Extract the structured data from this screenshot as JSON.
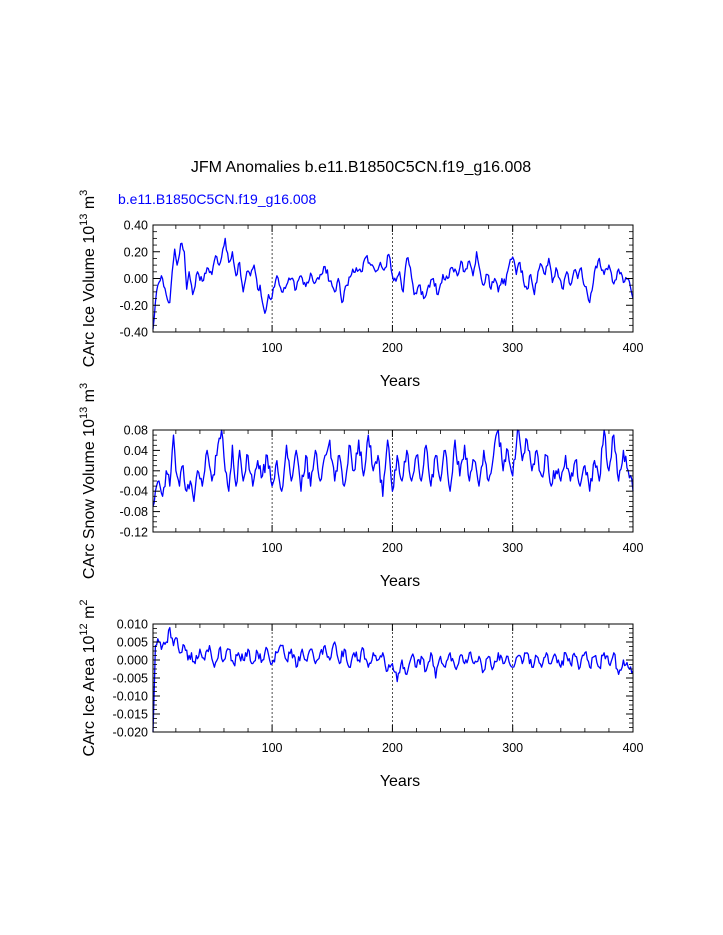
{
  "figure": {
    "title": "JFM Anomalies b.e11.B1850C5CN.f19_g16.008",
    "subtitle": "b.e11.B1850C5CN.f19_g16.008",
    "line_color": "#0000ff",
    "ref_line_color": "#000000"
  },
  "chart_data": [
    {
      "type": "line",
      "name": "ice-volume",
      "ylabel_main": "CArc Ice Volume 10",
      "ylabel_exp": "13",
      "ylabel_unit": " m",
      "ylabel_unit_exp": "3",
      "xlabel": "Years",
      "xlim": [
        1,
        400
      ],
      "ylim": [
        -0.4,
        0.4
      ],
      "yticks": [
        -0.4,
        -0.2,
        0.0,
        0.2,
        0.4
      ],
      "ytick_labels": [
        "-0.40",
        "-0.20",
        "0.00",
        "0.20",
        "0.40"
      ],
      "xticks": [
        100,
        200,
        300,
        400
      ],
      "xtick_labels": [
        "100",
        "200",
        "300",
        "400"
      ],
      "ref_lines_x": [
        100,
        200,
        300
      ],
      "keypoints": [
        [
          1,
          -0.38
        ],
        [
          3,
          -0.18
        ],
        [
          5,
          -0.05
        ],
        [
          8,
          0.02
        ],
        [
          12,
          -0.12
        ],
        [
          15,
          -0.18
        ],
        [
          17,
          0.05
        ],
        [
          19,
          0.22
        ],
        [
          21,
          0.1
        ],
        [
          24,
          0.26
        ],
        [
          27,
          0.2
        ],
        [
          29,
          -0.08
        ],
        [
          31,
          0.05
        ],
        [
          34,
          -0.12
        ],
        [
          38,
          0.05
        ],
        [
          42,
          -0.02
        ],
        [
          46,
          0.08
        ],
        [
          50,
          0.03
        ],
        [
          53,
          0.17
        ],
        [
          56,
          0.1
        ],
        [
          59,
          0.22
        ],
        [
          61,
          0.3
        ],
        [
          64,
          0.12
        ],
        [
          67,
          0.2
        ],
        [
          70,
          0.02
        ],
        [
          73,
          0.12
        ],
        [
          76,
          -0.1
        ],
        [
          79,
          0.05
        ],
        [
          82,
          0.02
        ],
        [
          85,
          0.1
        ],
        [
          88,
          -0.08
        ],
        [
          90,
          -0.05
        ],
        [
          92,
          -0.18
        ],
        [
          94,
          -0.26
        ],
        [
          97,
          -0.12
        ],
        [
          100,
          -0.14
        ],
        [
          104,
          0.02
        ],
        [
          108,
          -0.1
        ],
        [
          112,
          -0.05
        ],
        [
          116,
          0.0
        ],
        [
          120,
          -0.08
        ],
        [
          124,
          0.02
        ],
        [
          128,
          -0.06
        ],
        [
          132,
          0.04
        ],
        [
          136,
          -0.03
        ],
        [
          140,
          0.03
        ],
        [
          144,
          0.09
        ],
        [
          148,
          -0.02
        ],
        [
          152,
          -0.1
        ],
        [
          155,
          0.0
        ],
        [
          158,
          -0.18
        ],
        [
          162,
          -0.05
        ],
        [
          166,
          0.03
        ],
        [
          170,
          0.08
        ],
        [
          174,
          0.05
        ],
        [
          178,
          0.16
        ],
        [
          182,
          0.1
        ],
        [
          186,
          0.05
        ],
        [
          190,
          0.12
        ],
        [
          194,
          0.08
        ],
        [
          197,
          0.18
        ],
        [
          200,
          0.02
        ],
        [
          203,
          -0.02
        ],
        [
          206,
          0.05
        ],
        [
          209,
          -0.1
        ],
        [
          212,
          0.15
        ],
        [
          215,
          0.08
        ],
        [
          218,
          -0.12
        ],
        [
          222,
          -0.05
        ],
        [
          226,
          -0.15
        ],
        [
          230,
          -0.05
        ],
        [
          234,
          0.0
        ],
        [
          238,
          -0.12
        ],
        [
          242,
          0.03
        ],
        [
          246,
          0.0
        ],
        [
          250,
          0.08
        ],
        [
          254,
          0.02
        ],
        [
          257,
          0.13
        ],
        [
          260,
          0.05
        ],
        [
          264,
          0.13
        ],
        [
          267,
          0.02
        ],
        [
          270,
          0.2
        ],
        [
          273,
          0.05
        ],
        [
          276,
          -0.05
        ],
        [
          279,
          0.03
        ],
        [
          282,
          -0.08
        ],
        [
          285,
          0.0
        ],
        [
          288,
          -0.1
        ],
        [
          291,
          0.0
        ],
        [
          294,
          -0.05
        ],
        [
          297,
          0.1
        ],
        [
          300,
          0.16
        ],
        [
          303,
          0.03
        ],
        [
          306,
          0.12
        ],
        [
          309,
          -0.02
        ],
        [
          312,
          -0.08
        ],
        [
          315,
          0.03
        ],
        [
          318,
          -0.12
        ],
        [
          321,
          0.05
        ],
        [
          324,
          0.1
        ],
        [
          327,
          0.03
        ],
        [
          330,
          0.15
        ],
        [
          333,
          -0.03
        ],
        [
          336,
          0.08
        ],
        [
          339,
          0.0
        ],
        [
          342,
          -0.08
        ],
        [
          345,
          0.05
        ],
        [
          348,
          -0.05
        ],
        [
          351,
          0.06
        ],
        [
          354,
          0.0
        ],
        [
          357,
          0.08
        ],
        [
          360,
          -0.06
        ],
        [
          364,
          -0.18
        ],
        [
          368,
          0.05
        ],
        [
          372,
          0.15
        ],
        [
          376,
          0.03
        ],
        [
          380,
          0.1
        ],
        [
          384,
          -0.04
        ],
        [
          388,
          0.07
        ],
        [
          392,
          -0.03
        ],
        [
          396,
          0.0
        ],
        [
          400,
          -0.15
        ]
      ]
    },
    {
      "type": "line",
      "name": "snow-volume",
      "ylabel_main": "CArc Snow Volume 10",
      "ylabel_exp": "13",
      "ylabel_unit": " m",
      "ylabel_unit_exp": "3",
      "xlabel": "Years",
      "xlim": [
        1,
        400
      ],
      "ylim": [
        -0.12,
        0.08
      ],
      "yticks": [
        -0.12,
        -0.08,
        -0.04,
        0.0,
        0.04,
        0.08
      ],
      "ytick_labels": [
        "-0.12",
        "-0.08",
        "-0.04",
        "0.00",
        "0.04",
        "0.08"
      ],
      "xticks": [
        100,
        200,
        300,
        400
      ],
      "xtick_labels": [
        "100",
        "200",
        "300",
        "400"
      ],
      "ref_lines_x": [
        100,
        200,
        300
      ],
      "keypoints": [
        [
          1,
          -0.07
        ],
        [
          3,
          -0.04
        ],
        [
          6,
          -0.02
        ],
        [
          9,
          -0.05
        ],
        [
          12,
          0.0
        ],
        [
          15,
          -0.03
        ],
        [
          18,
          0.07
        ],
        [
          20,
          0.0
        ],
        [
          23,
          -0.03
        ],
        [
          26,
          0.01
        ],
        [
          29,
          -0.04
        ],
        [
          32,
          -0.02
        ],
        [
          35,
          -0.06
        ],
        [
          38,
          0.0
        ],
        [
          42,
          -0.03
        ],
        [
          46,
          0.04
        ],
        [
          50,
          -0.02
        ],
        [
          54,
          0.03
        ],
        [
          58,
          0.09
        ],
        [
          61,
          0.0
        ],
        [
          64,
          -0.04
        ],
        [
          67,
          0.05
        ],
        [
          70,
          -0.03
        ],
        [
          73,
          0.04
        ],
        [
          76,
          -0.02
        ],
        [
          80,
          0.03
        ],
        [
          84,
          -0.03
        ],
        [
          88,
          0.02
        ],
        [
          92,
          -0.01
        ],
        [
          96,
          0.03
        ],
        [
          100,
          -0.03
        ],
        [
          104,
          0.02
        ],
        [
          108,
          -0.04
        ],
        [
          112,
          0.05
        ],
        [
          116,
          -0.02
        ],
        [
          120,
          0.04
        ],
        [
          124,
          -0.04
        ],
        [
          128,
          0.03
        ],
        [
          132,
          -0.03
        ],
        [
          136,
          0.04
        ],
        [
          140,
          -0.02
        ],
        [
          144,
          0.03
        ],
        [
          148,
          0.06
        ],
        [
          152,
          -0.02
        ],
        [
          156,
          0.03
        ],
        [
          160,
          -0.03
        ],
        [
          164,
          0.05
        ],
        [
          168,
          0.0
        ],
        [
          172,
          0.06
        ],
        [
          176,
          -0.01
        ],
        [
          180,
          0.07
        ],
        [
          184,
          0.0
        ],
        [
          188,
          0.03
        ],
        [
          192,
          -0.05
        ],
        [
          196,
          0.06
        ],
        [
          200,
          -0.04
        ],
        [
          204,
          0.03
        ],
        [
          208,
          -0.02
        ],
        [
          212,
          0.04
        ],
        [
          216,
          -0.02
        ],
        [
          220,
          0.03
        ],
        [
          224,
          -0.02
        ],
        [
          228,
          0.05
        ],
        [
          232,
          -0.03
        ],
        [
          236,
          0.03
        ],
        [
          240,
          -0.02
        ],
        [
          244,
          0.04
        ],
        [
          248,
          -0.04
        ],
        [
          252,
          0.06
        ],
        [
          256,
          -0.01
        ],
        [
          260,
          0.05
        ],
        [
          264,
          -0.02
        ],
        [
          268,
          0.02
        ],
        [
          272,
          -0.03
        ],
        [
          276,
          0.04
        ],
        [
          280,
          -0.02
        ],
        [
          284,
          0.03
        ],
        [
          288,
          0.08
        ],
        [
          292,
          0.0
        ],
        [
          296,
          0.04
        ],
        [
          300,
          -0.01
        ],
        [
          304,
          0.08
        ],
        [
          308,
          0.02
        ],
        [
          312,
          0.06
        ],
        [
          316,
          0.0
        ],
        [
          320,
          0.04
        ],
        [
          324,
          -0.01
        ],
        [
          328,
          0.03
        ],
        [
          332,
          -0.03
        ],
        [
          336,
          0.0
        ],
        [
          340,
          -0.02
        ],
        [
          344,
          0.03
        ],
        [
          348,
          -0.02
        ],
        [
          352,
          0.02
        ],
        [
          356,
          -0.03
        ],
        [
          360,
          0.01
        ],
        [
          364,
          -0.04
        ],
        [
          368,
          0.02
        ],
        [
          372,
          -0.02
        ],
        [
          376,
          0.08
        ],
        [
          380,
          0.0
        ],
        [
          384,
          0.07
        ],
        [
          388,
          -0.02
        ],
        [
          392,
          0.04
        ],
        [
          396,
          0.0
        ],
        [
          400,
          -0.04
        ]
      ]
    },
    {
      "type": "line",
      "name": "ice-area",
      "ylabel_main": "CArc Ice Area 10",
      "ylabel_exp": "12",
      "ylabel_unit": " m",
      "ylabel_unit_exp": "2",
      "xlabel": "Years",
      "xlim": [
        1,
        400
      ],
      "ylim": [
        -0.02,
        0.01
      ],
      "yticks": [
        -0.02,
        -0.015,
        -0.01,
        -0.005,
        0.0,
        0.005,
        0.01
      ],
      "ytick_labels": [
        "-0.020",
        "-0.015",
        "-0.010",
        "-0.005",
        "0.000",
        "0.005",
        "0.010"
      ],
      "xticks": [
        100,
        200,
        300,
        400
      ],
      "xtick_labels": [
        "100",
        "200",
        "300",
        "400"
      ],
      "ref_lines_x": [
        100,
        200,
        300
      ],
      "keypoints": [
        [
          1,
          -0.02
        ],
        [
          3,
          0.004
        ],
        [
          6,
          0.005
        ],
        [
          9,
          0.004
        ],
        [
          12,
          0.005
        ],
        [
          15,
          0.009
        ],
        [
          18,
          0.004
        ],
        [
          21,
          0.006
        ],
        [
          24,
          0.002
        ],
        [
          27,
          0.004
        ],
        [
          30,
          0.0
        ],
        [
          33,
          0.002
        ],
        [
          36,
          -0.001
        ],
        [
          40,
          0.003
        ],
        [
          44,
          0.0
        ],
        [
          48,
          0.004
        ],
        [
          52,
          -0.002
        ],
        [
          56,
          0.003
        ],
        [
          60,
          0.0
        ],
        [
          64,
          0.003
        ],
        [
          68,
          -0.001
        ],
        [
          72,
          0.002
        ],
        [
          76,
          0.0
        ],
        [
          80,
          0.003
        ],
        [
          84,
          -0.001
        ],
        [
          88,
          0.002
        ],
        [
          92,
          0.0
        ],
        [
          96,
          0.003
        ],
        [
          100,
          -0.001
        ],
        [
          104,
          0.002
        ],
        [
          108,
          0.004
        ],
        [
          112,
          0.0
        ],
        [
          116,
          0.003
        ],
        [
          120,
          -0.002
        ],
        [
          124,
          0.002
        ],
        [
          128,
          0.0
        ],
        [
          132,
          0.003
        ],
        [
          136,
          -0.001
        ],
        [
          140,
          0.002
        ],
        [
          144,
          0.004
        ],
        [
          148,
          0.0
        ],
        [
          152,
          0.005
        ],
        [
          156,
          -0.001
        ],
        [
          160,
          0.003
        ],
        [
          164,
          -0.002
        ],
        [
          168,
          0.002
        ],
        [
          172,
          0.0
        ],
        [
          176,
          0.003
        ],
        [
          180,
          -0.002
        ],
        [
          184,
          0.002
        ],
        [
          188,
          0.0
        ],
        [
          192,
          0.002
        ],
        [
          196,
          -0.003
        ],
        [
          200,
          -0.001
        ],
        [
          204,
          -0.006
        ],
        [
          208,
          0.0
        ],
        [
          212,
          -0.004
        ],
        [
          216,
          0.001
        ],
        [
          220,
          -0.002
        ],
        [
          224,
          0.001
        ],
        [
          228,
          -0.003
        ],
        [
          232,
          0.002
        ],
        [
          236,
          -0.005
        ],
        [
          240,
          0.001
        ],
        [
          244,
          -0.002
        ],
        [
          248,
          0.002
        ],
        [
          252,
          -0.002
        ],
        [
          256,
          0.001
        ],
        [
          260,
          -0.001
        ],
        [
          264,
          0.002
        ],
        [
          268,
          -0.001
        ],
        [
          272,
          0.001
        ],
        [
          276,
          -0.003
        ],
        [
          280,
          0.001
        ],
        [
          284,
          -0.002
        ],
        [
          288,
          0.002
        ],
        [
          292,
          -0.001
        ],
        [
          296,
          0.001
        ],
        [
          300,
          -0.002
        ],
        [
          304,
          0.001
        ],
        [
          308,
          -0.001
        ],
        [
          312,
          0.002
        ],
        [
          316,
          -0.002
        ],
        [
          320,
          0.001
        ],
        [
          324,
          -0.002
        ],
        [
          328,
          0.002
        ],
        [
          332,
          -0.001
        ],
        [
          336,
          0.001
        ],
        [
          340,
          -0.002
        ],
        [
          344,
          0.002
        ],
        [
          348,
          -0.001
        ],
        [
          352,
          0.001
        ],
        [
          356,
          -0.002
        ],
        [
          360,
          0.002
        ],
        [
          364,
          -0.002
        ],
        [
          368,
          0.001
        ],
        [
          372,
          -0.002
        ],
        [
          376,
          0.002
        ],
        [
          380,
          -0.001
        ],
        [
          384,
          0.002
        ],
        [
          388,
          -0.004
        ],
        [
          392,
          0.0
        ],
        [
          396,
          -0.002
        ],
        [
          400,
          -0.003
        ]
      ]
    }
  ]
}
